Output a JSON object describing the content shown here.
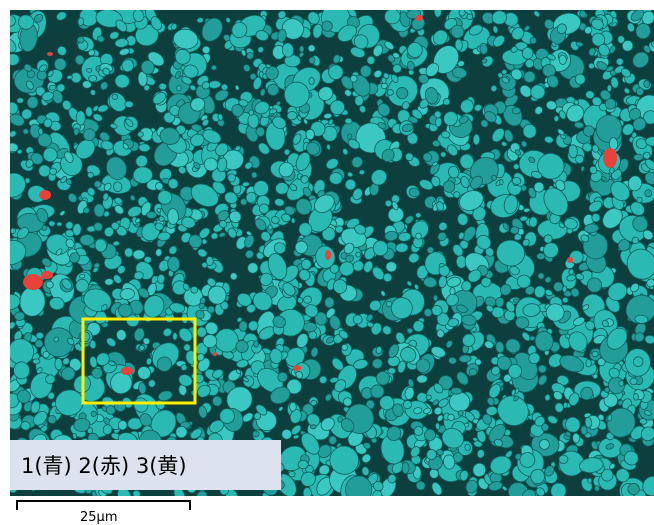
{
  "image": {
    "content": "micrograph-particles",
    "colors": {
      "particle_fill": "#2bb9b4",
      "particle_edge": "#0f5e5c",
      "background_gap": "#0d3f3e",
      "phase_red": "#e8433a",
      "highlight_box": "#ffee00"
    }
  },
  "legend": {
    "text": "1(青)  2(赤)  3(黄)",
    "background": "#dde3ee"
  },
  "scale_bar": {
    "label": "25µm"
  }
}
